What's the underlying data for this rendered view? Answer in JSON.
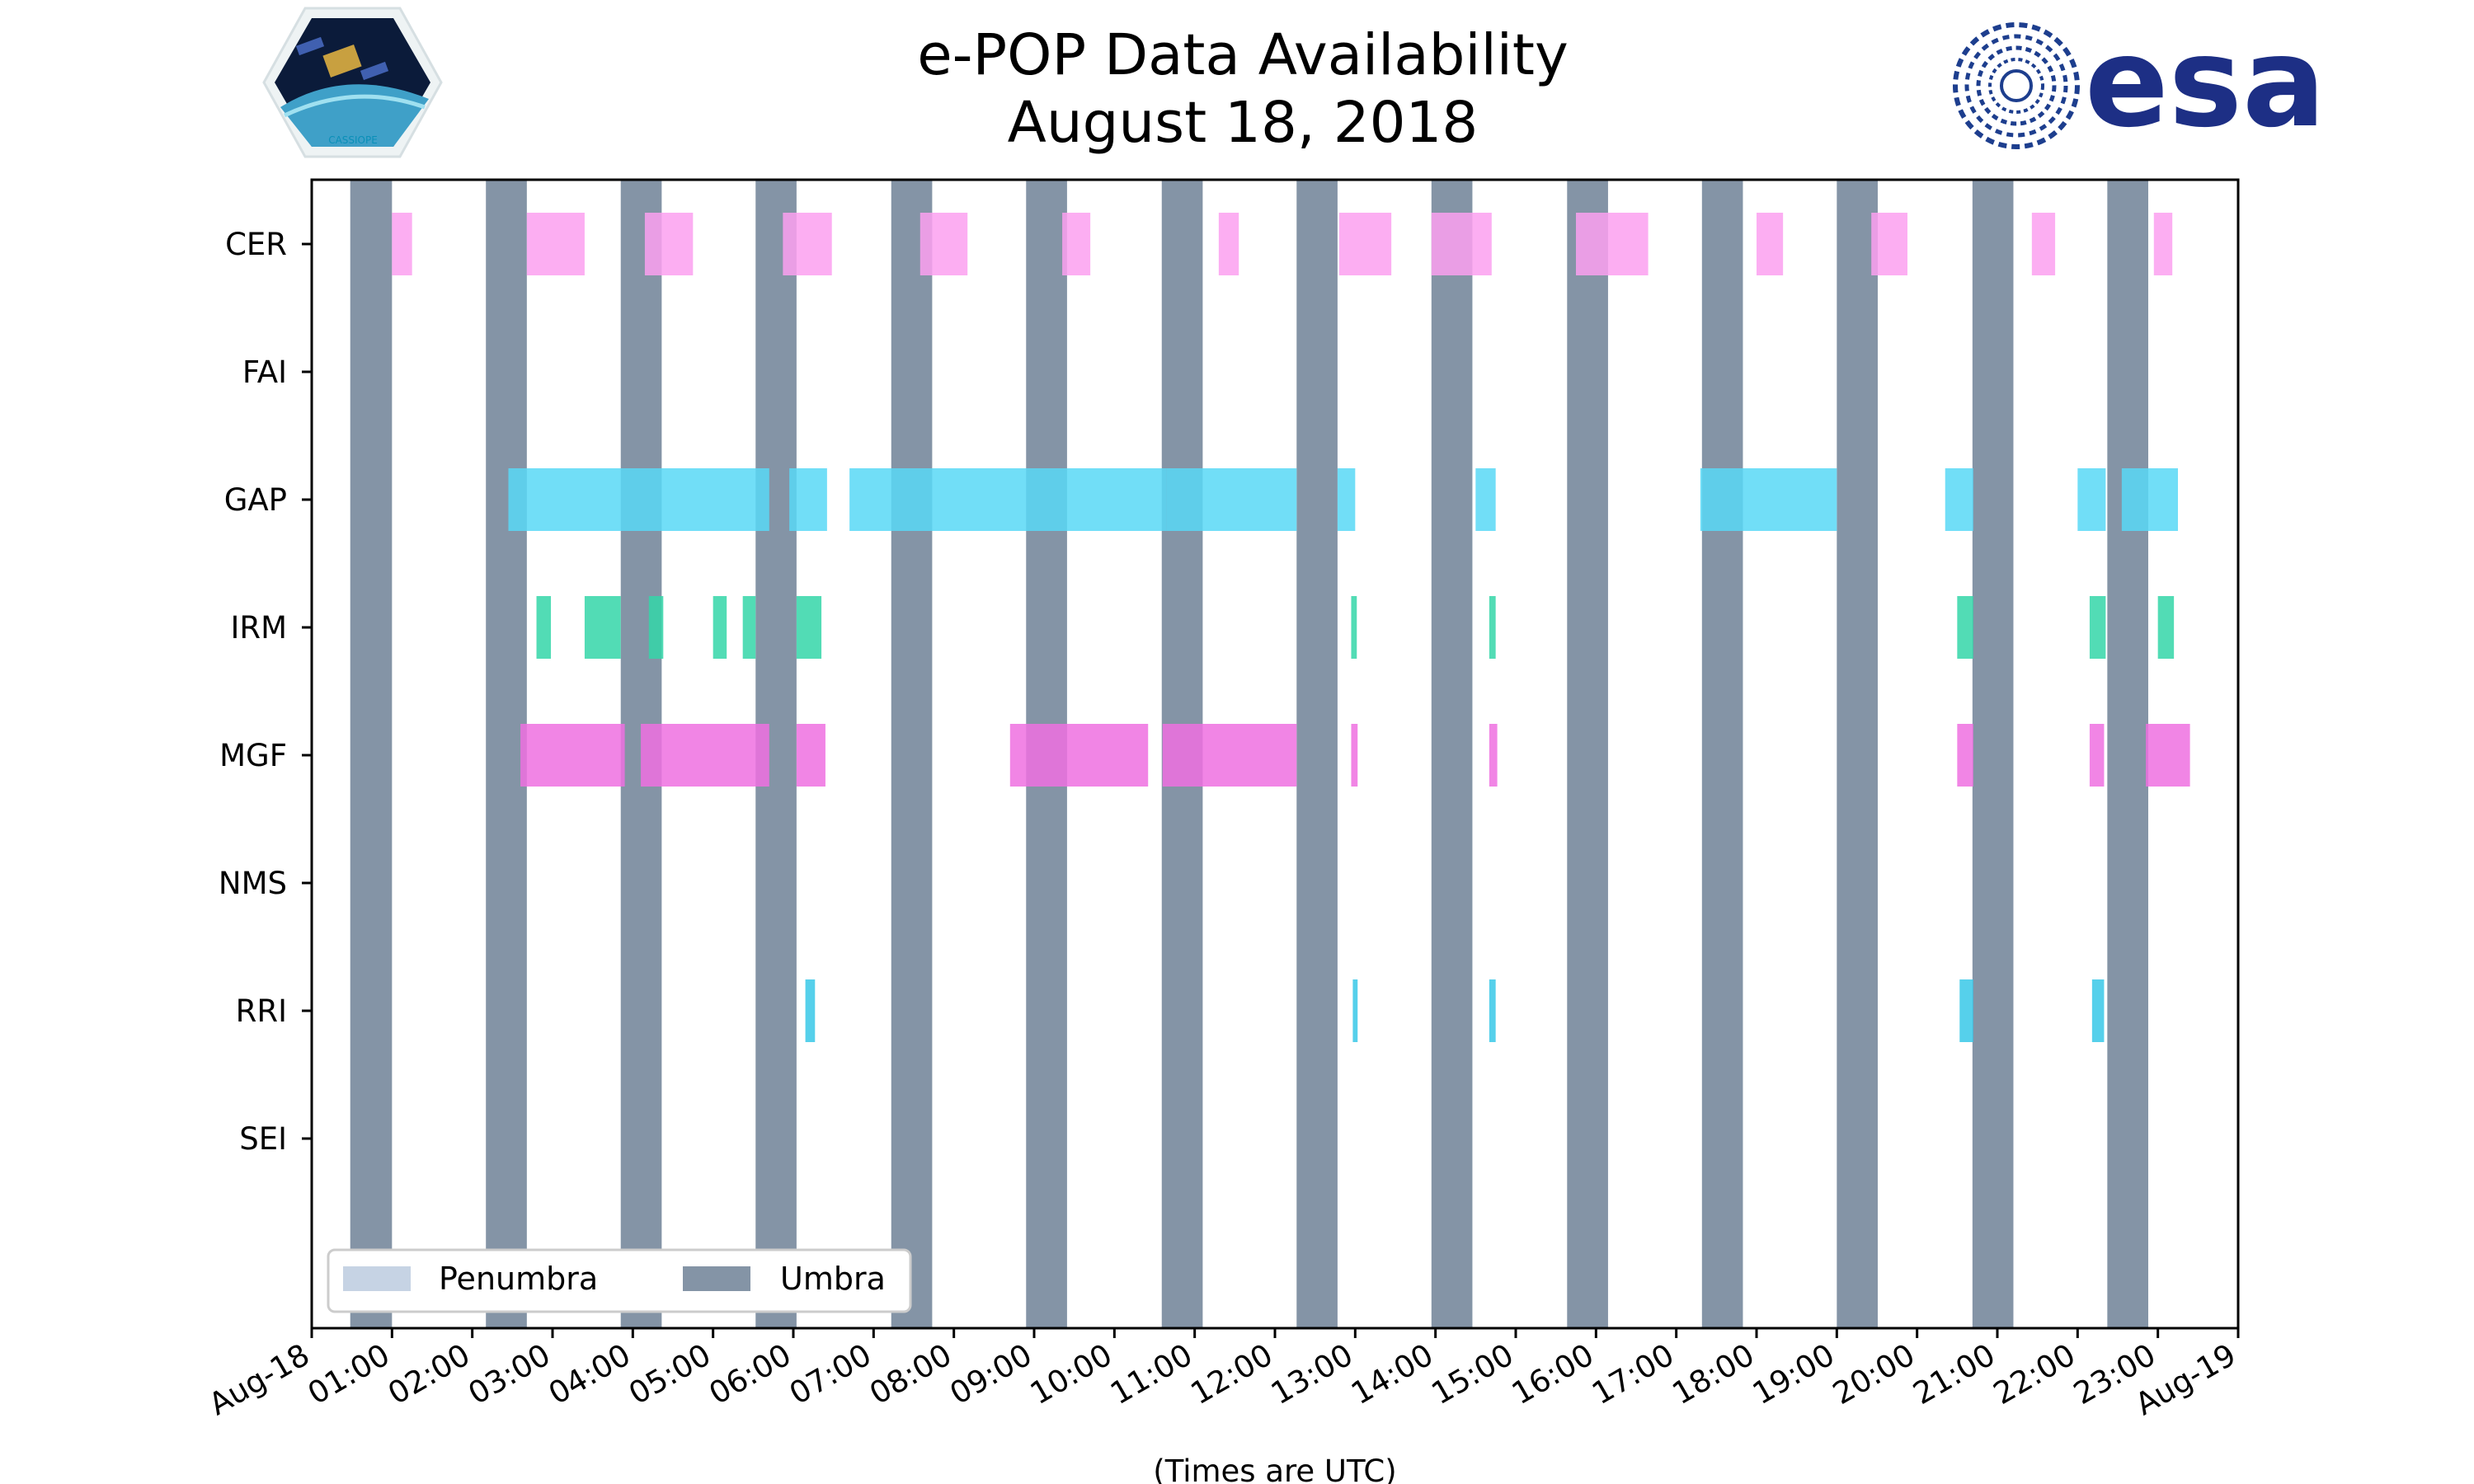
{
  "chart_data": {
    "type": "timeline",
    "title": "e-POP Data Availability",
    "subtitle": "August 18, 2018",
    "xlabel": "(Times are UTC)",
    "xlim_hours": [
      0,
      24
    ],
    "x_tick_labels": [
      "Aug-18",
      "01:00",
      "02:00",
      "03:00",
      "04:00",
      "05:00",
      "06:00",
      "07:00",
      "08:00",
      "09:00",
      "10:00",
      "11:00",
      "12:00",
      "13:00",
      "14:00",
      "15:00",
      "16:00",
      "17:00",
      "18:00",
      "19:00",
      "20:00",
      "21:00",
      "22:00",
      "23:00",
      "Aug-19"
    ],
    "instruments": [
      "CER",
      "FAI",
      "GAP",
      "IRM",
      "MGF",
      "NMS",
      "RRI",
      "SEI"
    ],
    "colors": {
      "CER": "#fca0f0",
      "FAI": "#a0a0a0",
      "GAP": "#58d8f6",
      "IRM": "#34d6a8",
      "MGF": "#ee70e0",
      "NMS": "#a0a0a0",
      "RRI": "#38c8e8",
      "SEI": "#a0a0a0",
      "umbra": "#8494a6",
      "penumbra": "#c6d3e4"
    },
    "umbra_intervals": [
      [
        0.48,
        1.0
      ],
      [
        2.17,
        2.68
      ],
      [
        3.85,
        4.36
      ],
      [
        5.53,
        6.04
      ],
      [
        7.22,
        7.73
      ],
      [
        8.9,
        9.41
      ],
      [
        10.59,
        11.1
      ],
      [
        12.27,
        12.78
      ],
      [
        13.95,
        14.46
      ],
      [
        15.64,
        16.15
      ],
      [
        17.32,
        17.83
      ],
      [
        19.0,
        19.51
      ],
      [
        20.69,
        21.2
      ],
      [
        22.37,
        22.88
      ]
    ],
    "penumbra_intervals": [],
    "series": [
      {
        "name": "CER",
        "intervals": [
          [
            1.0,
            1.25
          ],
          [
            2.68,
            3.4
          ],
          [
            4.15,
            4.75
          ],
          [
            5.87,
            6.48
          ],
          [
            7.58,
            8.17
          ],
          [
            9.35,
            9.7
          ],
          [
            11.3,
            11.55
          ],
          [
            12.8,
            13.45
          ],
          [
            13.95,
            14.7
          ],
          [
            15.75,
            16.65
          ],
          [
            18.0,
            18.33
          ],
          [
            19.43,
            19.88
          ],
          [
            21.43,
            21.72
          ],
          [
            22.95,
            23.18
          ]
        ]
      },
      {
        "name": "FAI",
        "intervals": []
      },
      {
        "name": "GAP",
        "intervals": [
          [
            2.45,
            5.7
          ],
          [
            5.95,
            6.42
          ],
          [
            6.7,
            10.65
          ],
          [
            10.65,
            12.27
          ],
          [
            12.78,
            13.0
          ],
          [
            14.5,
            14.75
          ],
          [
            17.3,
            19.0
          ],
          [
            20.35,
            20.7
          ],
          [
            22.0,
            22.35
          ],
          [
            22.55,
            23.25
          ]
        ]
      },
      {
        "name": "IRM",
        "intervals": [
          [
            2.8,
            2.98
          ],
          [
            3.4,
            3.85
          ],
          [
            4.2,
            4.38
          ],
          [
            5.0,
            5.17
          ],
          [
            5.37,
            5.53
          ],
          [
            6.04,
            6.35
          ],
          [
            12.95,
            13.02
          ],
          [
            14.67,
            14.75
          ],
          [
            20.5,
            20.7
          ],
          [
            22.15,
            22.35
          ],
          [
            23.0,
            23.2
          ]
        ]
      },
      {
        "name": "MGF",
        "intervals": [
          [
            2.6,
            3.9
          ],
          [
            4.1,
            5.7
          ],
          [
            6.04,
            6.4
          ],
          [
            8.7,
            10.42
          ],
          [
            10.6,
            12.27
          ],
          [
            12.95,
            13.03
          ],
          [
            14.67,
            14.77
          ],
          [
            20.5,
            20.7
          ],
          [
            22.15,
            22.33
          ],
          [
            22.85,
            23.4
          ]
        ]
      },
      {
        "name": "NMS",
        "intervals": []
      },
      {
        "name": "RRI",
        "intervals": [
          [
            6.15,
            6.27
          ],
          [
            12.97,
            13.03
          ],
          [
            14.67,
            14.75
          ],
          [
            20.53,
            20.7
          ],
          [
            22.18,
            22.33
          ]
        ]
      },
      {
        "name": "SEI",
        "intervals": []
      }
    ],
    "legend": {
      "position": "lower-left",
      "entries": [
        "Penumbra",
        "Umbra"
      ]
    }
  },
  "logos": {
    "cassiope_label": "CASSIOPE",
    "esa_text": "esa"
  }
}
